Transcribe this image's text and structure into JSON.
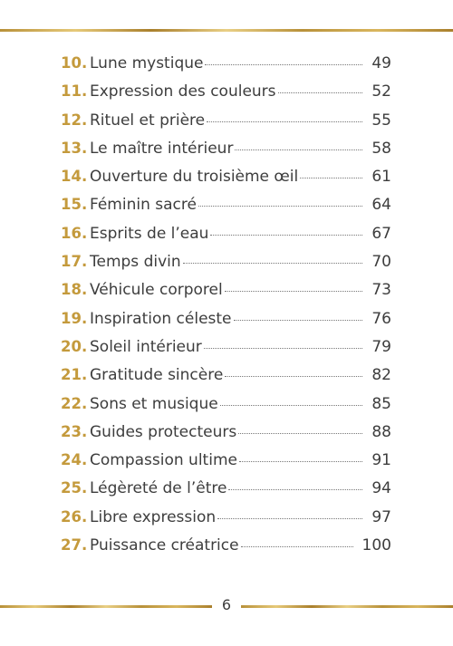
{
  "toc": {
    "entries": [
      {
        "number": "10.",
        "title": "Lune mystique",
        "page": 49
      },
      {
        "number": "11.",
        "title": "Expression des couleurs",
        "page": 52
      },
      {
        "number": "12.",
        "title": "Rituel et prière",
        "page": 55
      },
      {
        "number": "13.",
        "title": "Le maître intérieur",
        "page": 58
      },
      {
        "number": "14.",
        "title": "Ouverture du troisième œil",
        "page": 61
      },
      {
        "number": "15.",
        "title": "Féminin sacré",
        "page": 64
      },
      {
        "number": "16.",
        "title": "Esprits de l’eau",
        "page": 67
      },
      {
        "number": "17.",
        "title": "Temps divin",
        "page": 70
      },
      {
        "number": "18.",
        "title": "Véhicule corporel",
        "page": 73
      },
      {
        "number": "19.",
        "title": "Inspiration céleste",
        "page": 76
      },
      {
        "number": "20.",
        "title": "Soleil intérieur",
        "page": 79
      },
      {
        "number": "21.",
        "title": "Gratitude sincère",
        "page": 82
      },
      {
        "number": "22.",
        "title": "Sons et musique",
        "page": 85
      },
      {
        "number": "23.",
        "title": "Guides protecteurs",
        "page": 88
      },
      {
        "number": "24.",
        "title": "Compassion ultime",
        "page": 91
      },
      {
        "number": "25.",
        "title": "Légèreté de l’être",
        "page": 94
      },
      {
        "number": "26.",
        "title": "Libre expression",
        "page": 97
      },
      {
        "number": "27.",
        "title": "Puissance créatrice",
        "page": 100
      }
    ]
  },
  "footer": {
    "page_number": "6"
  }
}
